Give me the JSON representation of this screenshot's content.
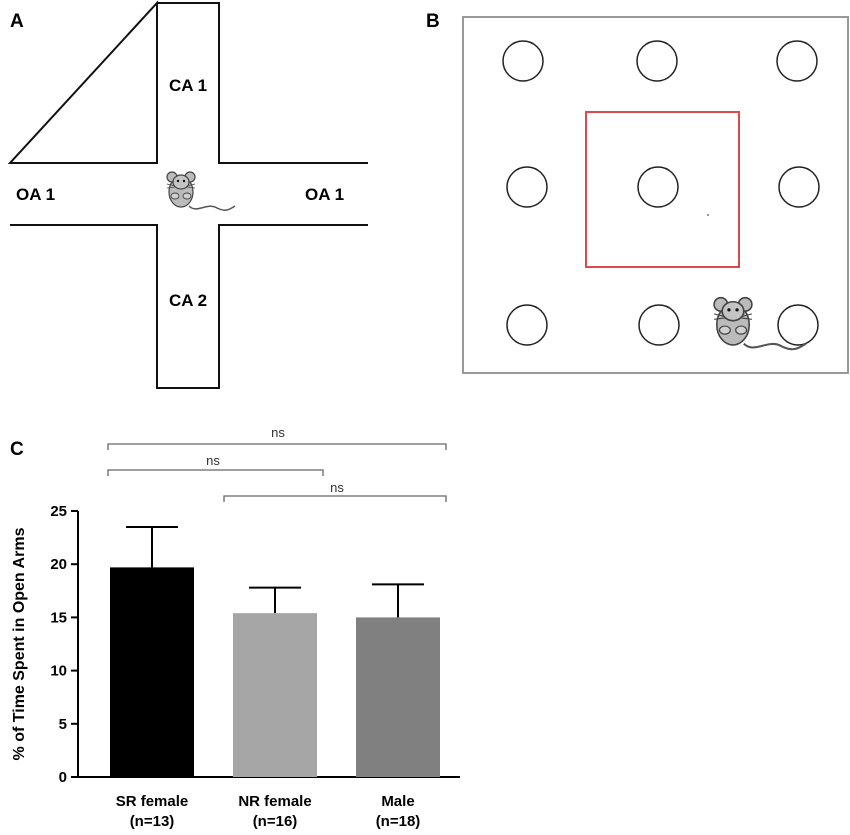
{
  "panels": {
    "a": {
      "letter": "A",
      "closed_arm_top": "CA 1",
      "closed_arm_bottom": "CA 2",
      "open_arm_left": "OA 1",
      "open_arm_right": "OA 1",
      "mouse_icon": "mouse-icon"
    },
    "b": {
      "letter": "B",
      "holes": 9,
      "center_zone_color": "#e0484f",
      "mouse_icon": "mouse-icon"
    },
    "c": {
      "letter": "C"
    }
  },
  "chart_data": {
    "type": "bar",
    "ylabel": "% of Time Spent in Open Arms",
    "ylim": [
      0,
      25
    ],
    "yticks": [
      "0",
      "5",
      "10",
      "15",
      "20",
      "25"
    ],
    "categories": [
      {
        "line1": "SR female",
        "line2": "(n=13)"
      },
      {
        "line1": "NR female",
        "line2": "(n=16)"
      },
      {
        "line1": "Male",
        "line2": "(n=18)"
      }
    ],
    "values": [
      19.7,
      15.4,
      15.0
    ],
    "errors": [
      3.8,
      2.4,
      3.1
    ],
    "colors": [
      "#000000",
      "#a6a6a6",
      "#808080"
    ],
    "significance": [
      {
        "from": 0,
        "to": 2,
        "label": "ns"
      },
      {
        "from": 0,
        "to": 1,
        "label": "ns"
      },
      {
        "from": 1,
        "to": 2,
        "label": "ns"
      }
    ]
  }
}
